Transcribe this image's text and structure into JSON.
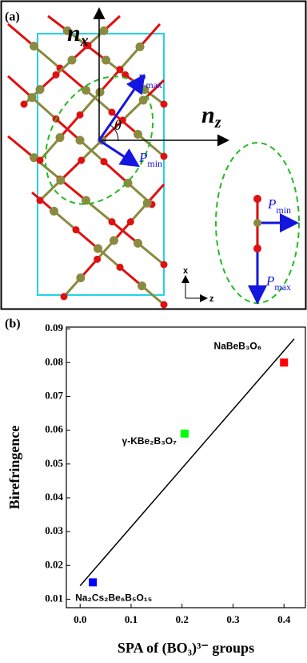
{
  "panel_a": {
    "label": "(a)",
    "n_x": {
      "symbol": "n",
      "subscript": "x"
    },
    "n_z": {
      "symbol": "n",
      "subscript": "z"
    },
    "p_max": {
      "symbol": "P",
      "subscript": "max"
    },
    "p_min": {
      "symbol": "P",
      "subscript": "min"
    },
    "theta": "θ",
    "p_min_right": {
      "symbol": "P",
      "subscript": "min"
    },
    "p_max_right": {
      "symbol": "P",
      "subscript": "max"
    },
    "axis_x": "x",
    "axis_z": "z"
  },
  "chart_data": {
    "type": "scatter",
    "label": "(b)",
    "x_label": "SPA of (BO₃)³⁻ groups",
    "y_label": "Birefringence",
    "points": [
      {
        "label": "NaBeB₃O₆",
        "x": 0.4,
        "y": 0.08,
        "color": "#ff0000"
      },
      {
        "label": "γ-KBe₂B₃O₇",
        "x": 0.205,
        "y": 0.059,
        "color": "#00ff00"
      },
      {
        "label": "Na₂Cs₂Be₆B₅O₁₅",
        "x": 0.025,
        "y": 0.015,
        "color": "#0000ff"
      }
    ],
    "fit": {
      "x": [
        0,
        0.42
      ],
      "y": [
        0.014,
        0.087
      ],
      "color": "#000000"
    },
    "xlim": [
      -0.027,
      0.442
    ],
    "ylim": [
      0.0075,
      0.0905
    ],
    "xticks": [
      {
        "value": 0,
        "label": "0.0"
      },
      0.1,
      0.2,
      0.3,
      0.4
    ],
    "yticks": [
      0.01,
      0.02,
      0.03,
      0.04,
      0.05,
      0.06,
      0.07,
      0.08,
      0.09
    ]
  }
}
